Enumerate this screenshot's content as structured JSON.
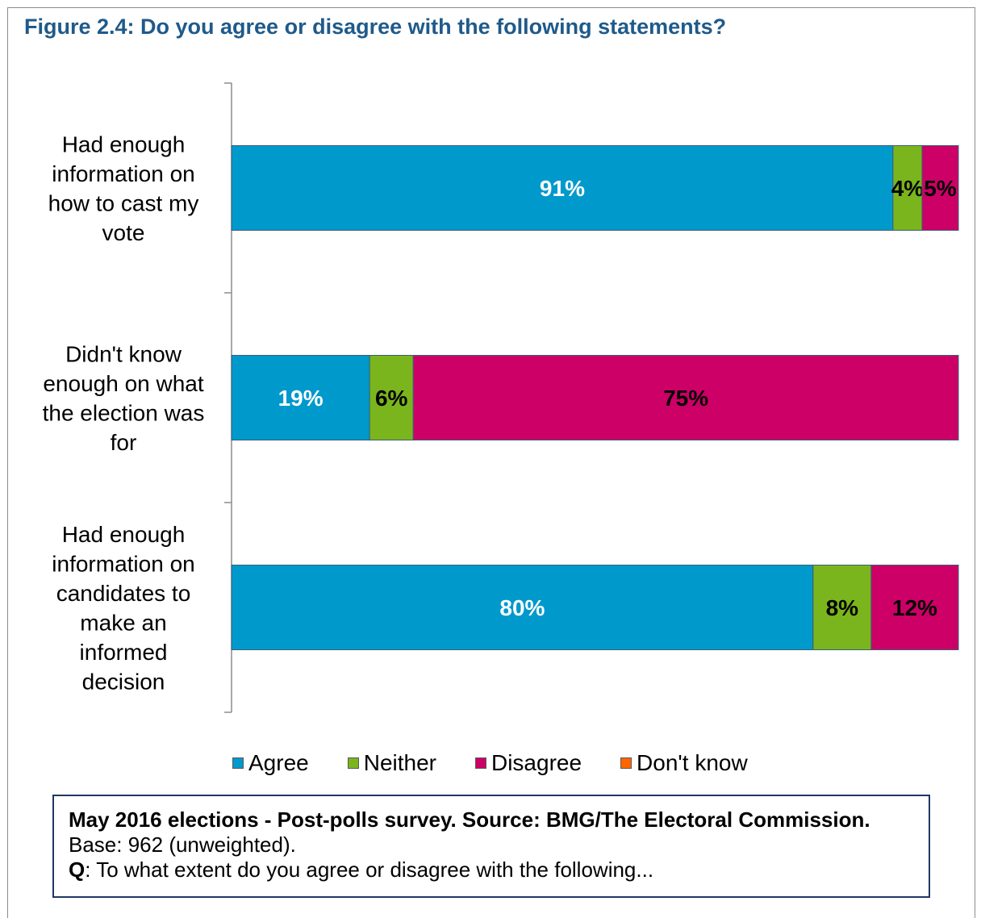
{
  "figure": {
    "title": "Figure 2.4: Do you agree or disagree with the following statements?"
  },
  "chart_data": {
    "type": "bar",
    "orientation": "horizontal",
    "stacked": true,
    "title": "Figure 2.4: Do you agree or disagree with the following statements?",
    "categories": [
      [
        "Had enough",
        "information on",
        "how to cast my",
        "vote"
      ],
      [
        "Didn't know",
        "enough on what",
        "the election was",
        "for"
      ],
      [
        "Had enough",
        "information on",
        "candidates to",
        "make an",
        "informed",
        "decision"
      ]
    ],
    "series": [
      {
        "name": "Agree",
        "color": "#0099cc",
        "label_color": "#ffffff",
        "values": [
          91,
          19,
          80
        ],
        "labels": [
          "91%",
          "19%",
          "80%"
        ]
      },
      {
        "name": "Neither",
        "color": "#7ab51d",
        "label_color": "#000000",
        "values": [
          4,
          6,
          8
        ],
        "labels": [
          "4%",
          "6%",
          "8%"
        ]
      },
      {
        "name": "Disagree",
        "color": "#cc0066",
        "label_color": "#000000",
        "values": [
          5,
          75,
          12
        ],
        "labels": [
          "5%",
          "75%",
          "12%"
        ]
      },
      {
        "name": "Don't know",
        "color": "#ff6600",
        "label_color": "#000000",
        "values": [
          0,
          0,
          0
        ],
        "labels": [
          "",
          "",
          ""
        ]
      }
    ],
    "xlim": [
      0,
      100
    ],
    "grid": false,
    "legend_position": "bottom"
  },
  "source": {
    "bold_text": "May 2016 elections - Post-polls survey. Source: BMG/The Electoral Commission.",
    "base_text": " Base: 962 (unweighted).",
    "q_label": "Q",
    "q_text": ": To what extent do you agree or disagree with the following..."
  }
}
